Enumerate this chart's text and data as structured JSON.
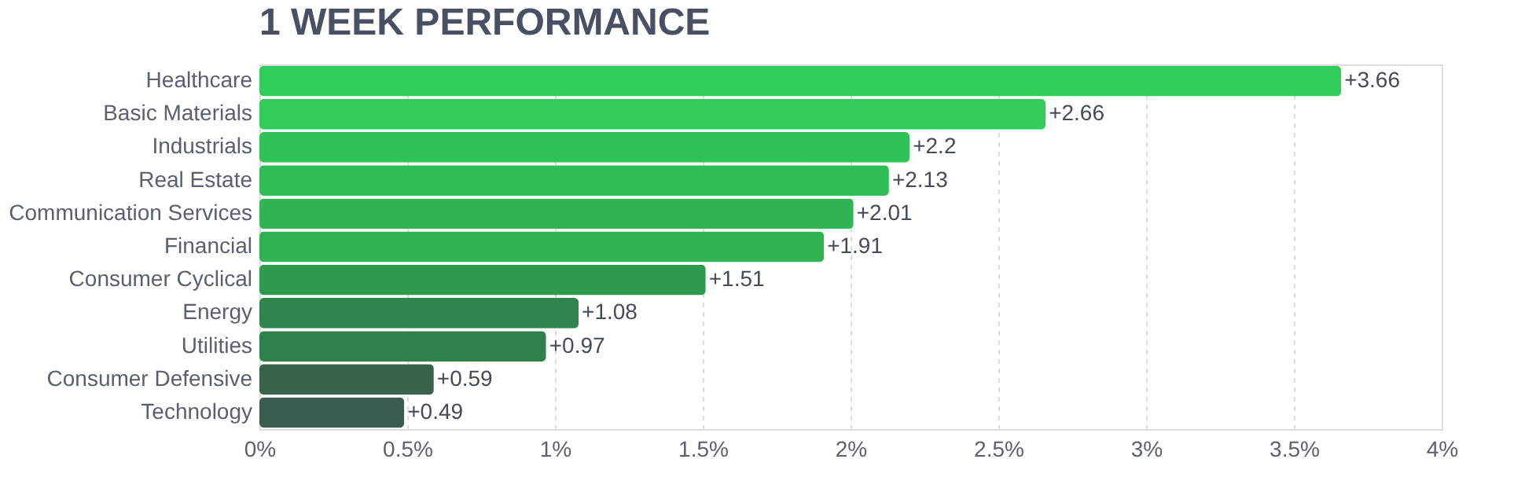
{
  "chart_data": {
    "type": "bar",
    "orientation": "horizontal",
    "title": "1 WEEK PERFORMANCE",
    "categories": [
      "Healthcare",
      "Basic Materials",
      "Industrials",
      "Real Estate",
      "Communication Services",
      "Financial",
      "Consumer Cyclical",
      "Energy",
      "Utilities",
      "Consumer Defensive",
      "Technology"
    ],
    "values": [
      3.66,
      2.66,
      2.2,
      2.13,
      2.01,
      1.91,
      1.51,
      1.08,
      0.97,
      0.59,
      0.49
    ],
    "value_labels": [
      "+3.66",
      "+2.66",
      "+2.2",
      "+2.13",
      "+2.01",
      "+1.91",
      "+1.51",
      "+1.08",
      "+0.97",
      "+0.59",
      "+0.49"
    ],
    "colors": [
      "#31cd5a",
      "#31cc59",
      "#30c256",
      "#30bd55",
      "#2fb553",
      "#2fb252",
      "#2e9a4e",
      "#2f854c",
      "#30804c",
      "#39624d",
      "#3a5d4d"
    ],
    "xlim": [
      0,
      4
    ],
    "xticks": [
      {
        "value": 0,
        "label": "0%"
      },
      {
        "value": 0.5,
        "label": "0.5%"
      },
      {
        "value": 1,
        "label": "1%"
      },
      {
        "value": 1.5,
        "label": "1.5%"
      },
      {
        "value": 2,
        "label": "2%"
      },
      {
        "value": 2.5,
        "label": "2.5%"
      },
      {
        "value": 3,
        "label": "3%"
      },
      {
        "value": 3.5,
        "label": "3.5%"
      },
      {
        "value": 4,
        "label": "4%"
      }
    ],
    "grid": "x"
  }
}
